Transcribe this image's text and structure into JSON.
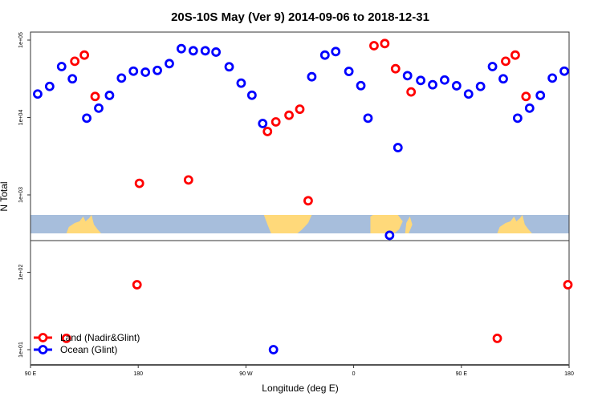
{
  "chart_data": {
    "type": "scatter",
    "title": "20S-10S May (Ver 9)   2014-09-06 to 2018-12-31",
    "xlabel": "Longitude (deg E)",
    "ylabel": "N Total",
    "x_range_deg": [
      90,
      540
    ],
    "x_ticks": [
      {
        "lon": 90,
        "label": "90 E"
      },
      {
        "lon": 180,
        "label": "180"
      },
      {
        "lon": 270,
        "label": "90 W"
      },
      {
        "lon": 360,
        "label": "0"
      },
      {
        "lon": 450,
        "label": "90 E"
      },
      {
        "lon": 540,
        "label": "180"
      }
    ],
    "y_scale": "log",
    "ylim": [
      6.3,
      126000
    ],
    "y_ticks": [
      {
        "value": 10,
        "label": "1e+01"
      },
      {
        "value": 100,
        "label": "1e+02"
      },
      {
        "value": 1000,
        "label": "1e+03"
      },
      {
        "value": 10000,
        "label": "1e+04"
      },
      {
        "value": 100000,
        "label": "1e+05"
      }
    ],
    "map_strip": {
      "latitude_band": "20S-10S",
      "land_color": "#FFD97A",
      "ocean_color": "#A7BEDC"
    },
    "legend": {
      "placement": "bottom-left"
    },
    "series": [
      {
        "name": "Land (Nadir&Glint)",
        "color": "#FF0000",
        "points": [
          [
            127,
            53300
          ],
          [
            135,
            64000
          ],
          [
            144,
            18700
          ],
          [
            -179,
            1410
          ],
          [
            -138,
            1560
          ],
          [
            -72,
            6590
          ],
          [
            -65,
            8770
          ],
          [
            -54,
            10700
          ],
          [
            -45,
            12800
          ],
          [
            -38,
            840
          ],
          [
            17,
            84600
          ],
          [
            26,
            90200
          ],
          [
            35,
            42700
          ],
          [
            48,
            21400
          ],
          [
            179,
            69
          ],
          [
            120,
            14
          ]
        ]
      },
      {
        "name": "Ocean (Glint)",
        "color": "#0000FF",
        "points": [
          [
            96,
            20100
          ],
          [
            106,
            25200
          ],
          [
            116,
            45500
          ],
          [
            125,
            31600
          ],
          [
            137,
            9800
          ],
          [
            147,
            13200
          ],
          [
            156,
            19300
          ],
          [
            166,
            32300
          ],
          [
            176,
            39700
          ],
          [
            -174,
            38500
          ],
          [
            -164,
            40600
          ],
          [
            -154,
            49700
          ],
          [
            -144,
            77500
          ],
          [
            -134,
            72800
          ],
          [
            -124,
            72800
          ],
          [
            -115,
            70000
          ],
          [
            -104,
            45200
          ],
          [
            -94,
            27800
          ],
          [
            -85,
            19400
          ],
          [
            -76,
            8360
          ],
          [
            -35,
            33600
          ],
          [
            -24,
            64000
          ],
          [
            -15,
            71100
          ],
          [
            -4,
            39400
          ],
          [
            6,
            25800
          ],
          [
            12,
            9800
          ],
          [
            37,
            4080
          ],
          [
            45,
            34700
          ],
          [
            56,
            30100
          ],
          [
            66,
            26500
          ],
          [
            76,
            30500
          ],
          [
            86,
            25700
          ],
          [
            30,
            300
          ],
          [
            -67,
            10
          ]
        ]
      }
    ]
  }
}
